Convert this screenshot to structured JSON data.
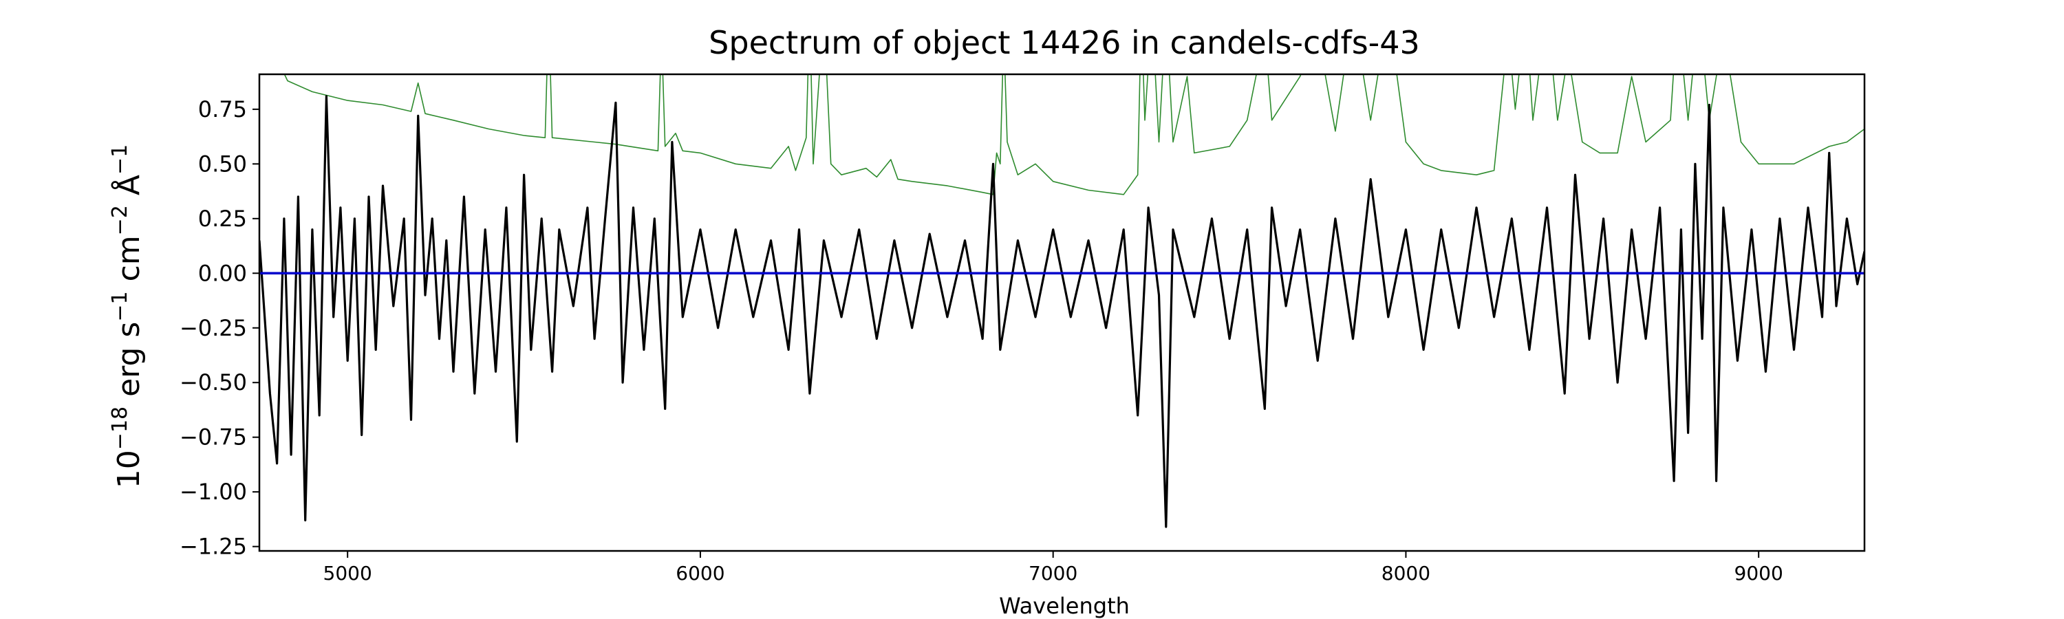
{
  "chart_data": {
    "type": "line",
    "title": "Spectrum of object 14426 in candels-cdfs-43",
    "xlabel": "Wavelength",
    "ylabel": "10^-18 erg s^-1 cm^-2 Å^-1",
    "ylabel_parts": {
      "base1": "10",
      "exp1": "−18",
      "unit1": " erg s",
      "exp2": "−1",
      "unit2": " cm",
      "exp3": "−2",
      "unit3": " Å",
      "exp4": "−1"
    },
    "xlim": [
      4750,
      9300
    ],
    "ylim": [
      -1.27,
      0.91
    ],
    "xticks": [
      5000,
      6000,
      7000,
      8000,
      9000
    ],
    "xtick_labels": [
      "5000",
      "6000",
      "7000",
      "8000",
      "9000"
    ],
    "yticks": [
      -1.25,
      -1.0,
      -0.75,
      -0.5,
      -0.25,
      0.0,
      0.25,
      0.5,
      0.75
    ],
    "ytick_labels": [
      "−1.25",
      "−1.00",
      "−0.75",
      "−0.50",
      "−0.25",
      "0.00",
      "0.25",
      "0.50",
      "0.75"
    ],
    "grid": false,
    "colors": {
      "flux": "#000000",
      "error": "#2e8b2e",
      "zero": "#0000cc"
    },
    "series": [
      {
        "role": "zero",
        "points": [
          [
            4750,
            0.0
          ],
          [
            9300,
            0.0
          ]
        ]
      },
      {
        "role": "error",
        "points": [
          [
            4750,
            1.15
          ],
          [
            4830,
            0.88
          ],
          [
            4900,
            0.83
          ],
          [
            5000,
            0.79
          ],
          [
            5100,
            0.77
          ],
          [
            5180,
            0.74
          ],
          [
            5200,
            0.87
          ],
          [
            5220,
            0.73
          ],
          [
            5300,
            0.7
          ],
          [
            5400,
            0.66
          ],
          [
            5500,
            0.63
          ],
          [
            5560,
            0.62
          ],
          [
            5570,
            1.2
          ],
          [
            5580,
            0.62
          ],
          [
            5700,
            0.6
          ],
          [
            5760,
            0.59
          ],
          [
            5800,
            0.58
          ],
          [
            5880,
            0.56
          ],
          [
            5890,
            1.1
          ],
          [
            5900,
            0.58
          ],
          [
            5930,
            0.64
          ],
          [
            5950,
            0.56
          ],
          [
            6000,
            0.55
          ],
          [
            6100,
            0.5
          ],
          [
            6200,
            0.48
          ],
          [
            6250,
            0.58
          ],
          [
            6270,
            0.47
          ],
          [
            6300,
            0.62
          ],
          [
            6310,
            1.2
          ],
          [
            6320,
            0.5
          ],
          [
            6350,
            1.2
          ],
          [
            6370,
            0.5
          ],
          [
            6400,
            0.45
          ],
          [
            6470,
            0.48
          ],
          [
            6500,
            0.44
          ],
          [
            6540,
            0.52
          ],
          [
            6560,
            0.43
          ],
          [
            6600,
            0.42
          ],
          [
            6700,
            0.4
          ],
          [
            6800,
            0.37
          ],
          [
            6830,
            0.36
          ],
          [
            6840,
            0.55
          ],
          [
            6850,
            0.5
          ],
          [
            6860,
            1.1
          ],
          [
            6870,
            0.6
          ],
          [
            6900,
            0.45
          ],
          [
            6950,
            0.5
          ],
          [
            7000,
            0.42
          ],
          [
            7100,
            0.38
          ],
          [
            7200,
            0.36
          ],
          [
            7240,
            0.45
          ],
          [
            7250,
            1.2
          ],
          [
            7260,
            0.7
          ],
          [
            7280,
            1.2
          ],
          [
            7300,
            0.6
          ],
          [
            7320,
            1.2
          ],
          [
            7340,
            0.6
          ],
          [
            7380,
            0.9
          ],
          [
            7400,
            0.55
          ],
          [
            7500,
            0.58
          ],
          [
            7550,
            0.7
          ],
          [
            7600,
            1.1
          ],
          [
            7620,
            0.7
          ],
          [
            7700,
            0.9
          ],
          [
            7750,
            1.1
          ],
          [
            7800,
            0.65
          ],
          [
            7850,
            1.2
          ],
          [
            7900,
            0.7
          ],
          [
            7950,
            1.2
          ],
          [
            8000,
            0.6
          ],
          [
            8050,
            0.5
          ],
          [
            8100,
            0.47
          ],
          [
            8200,
            0.45
          ],
          [
            8250,
            0.47
          ],
          [
            8290,
            1.1
          ],
          [
            8310,
            0.75
          ],
          [
            8340,
            1.2
          ],
          [
            8360,
            0.7
          ],
          [
            8400,
            1.2
          ],
          [
            8430,
            0.7
          ],
          [
            8460,
            1.0
          ],
          [
            8500,
            0.6
          ],
          [
            8550,
            0.55
          ],
          [
            8600,
            0.55
          ],
          [
            8640,
            0.9
          ],
          [
            8680,
            0.6
          ],
          [
            8750,
            0.7
          ],
          [
            8770,
            1.2
          ],
          [
            8800,
            0.7
          ],
          [
            8830,
            1.2
          ],
          [
            8860,
            0.7
          ],
          [
            8900,
            1.1
          ],
          [
            8950,
            0.6
          ],
          [
            9000,
            0.5
          ],
          [
            9100,
            0.5
          ],
          [
            9200,
            0.58
          ],
          [
            9250,
            0.6
          ],
          [
            9300,
            0.66
          ]
        ]
      },
      {
        "role": "flux",
        "points": [
          [
            4750,
            0.15
          ],
          [
            4780,
            -0.55
          ],
          [
            4800,
            -0.87
          ],
          [
            4820,
            0.25
          ],
          [
            4840,
            -0.83
          ],
          [
            4860,
            0.35
          ],
          [
            4880,
            -1.13
          ],
          [
            4900,
            0.2
          ],
          [
            4920,
            -0.65
          ],
          [
            4940,
            0.81
          ],
          [
            4960,
            -0.2
          ],
          [
            4980,
            0.3
          ],
          [
            5000,
            -0.4
          ],
          [
            5020,
            0.25
          ],
          [
            5040,
            -0.74
          ],
          [
            5060,
            0.35
          ],
          [
            5080,
            -0.35
          ],
          [
            5100,
            0.4
          ],
          [
            5130,
            -0.15
          ],
          [
            5160,
            0.25
          ],
          [
            5180,
            -0.67
          ],
          [
            5200,
            0.72
          ],
          [
            5220,
            -0.1
          ],
          [
            5240,
            0.25
          ],
          [
            5260,
            -0.3
          ],
          [
            5280,
            0.15
          ],
          [
            5300,
            -0.45
          ],
          [
            5330,
            0.35
          ],
          [
            5360,
            -0.55
          ],
          [
            5390,
            0.2
          ],
          [
            5420,
            -0.45
          ],
          [
            5450,
            0.3
          ],
          [
            5480,
            -0.77
          ],
          [
            5500,
            0.45
          ],
          [
            5520,
            -0.35
          ],
          [
            5550,
            0.25
          ],
          [
            5580,
            -0.45
          ],
          [
            5600,
            0.2
          ],
          [
            5640,
            -0.15
          ],
          [
            5680,
            0.3
          ],
          [
            5700,
            -0.3
          ],
          [
            5730,
            0.25
          ],
          [
            5760,
            0.78
          ],
          [
            5780,
            -0.5
          ],
          [
            5810,
            0.3
          ],
          [
            5840,
            -0.35
          ],
          [
            5870,
            0.25
          ],
          [
            5900,
            -0.62
          ],
          [
            5920,
            0.6
          ],
          [
            5950,
            -0.2
          ],
          [
            6000,
            0.2
          ],
          [
            6050,
            -0.25
          ],
          [
            6100,
            0.2
          ],
          [
            6150,
            -0.2
          ],
          [
            6200,
            0.15
          ],
          [
            6250,
            -0.35
          ],
          [
            6280,
            0.2
          ],
          [
            6310,
            -0.55
          ],
          [
            6350,
            0.15
          ],
          [
            6400,
            -0.2
          ],
          [
            6450,
            0.2
          ],
          [
            6500,
            -0.3
          ],
          [
            6550,
            0.15
          ],
          [
            6600,
            -0.25
          ],
          [
            6650,
            0.18
          ],
          [
            6700,
            -0.2
          ],
          [
            6750,
            0.15
          ],
          [
            6800,
            -0.3
          ],
          [
            6830,
            0.5
          ],
          [
            6850,
            -0.35
          ],
          [
            6900,
            0.15
          ],
          [
            6950,
            -0.2
          ],
          [
            7000,
            0.2
          ],
          [
            7050,
            -0.2
          ],
          [
            7100,
            0.15
          ],
          [
            7150,
            -0.25
          ],
          [
            7200,
            0.2
          ],
          [
            7240,
            -0.65
          ],
          [
            7270,
            0.3
          ],
          [
            7300,
            -0.1
          ],
          [
            7320,
            -1.16
          ],
          [
            7340,
            0.2
          ],
          [
            7400,
            -0.2
          ],
          [
            7450,
            0.25
          ],
          [
            7500,
            -0.3
          ],
          [
            7550,
            0.2
          ],
          [
            7600,
            -0.62
          ],
          [
            7620,
            0.3
          ],
          [
            7660,
            -0.15
          ],
          [
            7700,
            0.2
          ],
          [
            7750,
            -0.4
          ],
          [
            7800,
            0.25
          ],
          [
            7850,
            -0.3
          ],
          [
            7900,
            0.43
          ],
          [
            7950,
            -0.2
          ],
          [
            8000,
            0.2
          ],
          [
            8050,
            -0.35
          ],
          [
            8100,
            0.2
          ],
          [
            8150,
            -0.25
          ],
          [
            8200,
            0.3
          ],
          [
            8250,
            -0.2
          ],
          [
            8300,
            0.25
          ],
          [
            8350,
            -0.35
          ],
          [
            8400,
            0.3
          ],
          [
            8450,
            -0.55
          ],
          [
            8480,
            0.45
          ],
          [
            8520,
            -0.3
          ],
          [
            8560,
            0.25
          ],
          [
            8600,
            -0.5
          ],
          [
            8640,
            0.2
          ],
          [
            8680,
            -0.3
          ],
          [
            8720,
            0.3
          ],
          [
            8760,
            -0.95
          ],
          [
            8780,
            0.2
          ],
          [
            8800,
            -0.73
          ],
          [
            8820,
            0.5
          ],
          [
            8840,
            -0.3
          ],
          [
            8860,
            0.77
          ],
          [
            8880,
            -0.95
          ],
          [
            8900,
            0.3
          ],
          [
            8940,
            -0.4
          ],
          [
            8980,
            0.2
          ],
          [
            9020,
            -0.45
          ],
          [
            9060,
            0.25
          ],
          [
            9100,
            -0.35
          ],
          [
            9140,
            0.3
          ],
          [
            9180,
            -0.2
          ],
          [
            9200,
            0.55
          ],
          [
            9220,
            -0.15
          ],
          [
            9250,
            0.25
          ],
          [
            9280,
            -0.05
          ],
          [
            9300,
            0.1
          ]
        ]
      }
    ]
  }
}
